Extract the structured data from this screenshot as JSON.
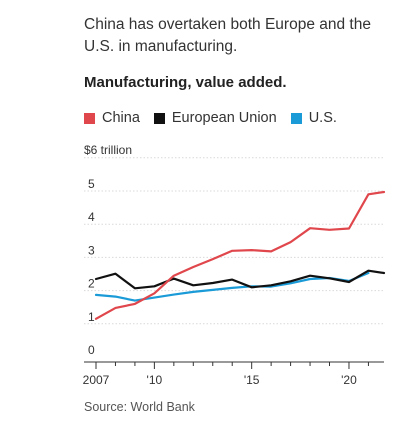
{
  "headline": "China has overtaken both Europe and the U.S. in manufacturing.",
  "source": "Source: World Bank",
  "colors": {
    "china": "#e0474c",
    "eu": "#111111",
    "us": "#1a9bd7",
    "grid": "#d9d9d9",
    "axis": "#333333"
  },
  "chart_data": {
    "type": "line",
    "title": "Manufacturing, value added.",
    "xlabel": "",
    "ylabel": "",
    "y_unit_label": "$6 trillion",
    "y_tick_labels": [
      "0",
      "1",
      "2",
      "3",
      "4",
      "5"
    ],
    "x_tick_labels": [
      "2007",
      "'10",
      "'15",
      "'20"
    ],
    "x_ticks": [
      2007,
      2010,
      2015,
      2020
    ],
    "xlim": [
      2007,
      2021.8
    ],
    "ylim": [
      0,
      6
    ],
    "grid": true,
    "legend_position": "top",
    "x": [
      2007,
      2008,
      2009,
      2010,
      2011,
      2012,
      2013,
      2014,
      2015,
      2016,
      2017,
      2018,
      2019,
      2020,
      2021,
      2021.8
    ],
    "series": [
      {
        "name": "China",
        "color": "#e0474c",
        "values": [
          1.15,
          1.48,
          1.6,
          1.92,
          2.45,
          2.71,
          2.95,
          3.2,
          3.22,
          3.18,
          3.46,
          3.88,
          3.83,
          3.87,
          4.9,
          4.97
        ]
      },
      {
        "name": "European Union",
        "color": "#111111",
        "values": [
          2.35,
          2.51,
          2.07,
          2.13,
          2.36,
          2.16,
          2.23,
          2.33,
          2.1,
          2.16,
          2.28,
          2.45,
          2.37,
          2.26,
          2.6,
          2.53
        ]
      },
      {
        "name": "U.S.",
        "color": "#1a9bd7",
        "values": [
          1.87,
          1.82,
          1.7,
          1.79,
          1.88,
          1.96,
          2.02,
          2.08,
          2.13,
          2.12,
          2.22,
          2.35,
          2.38,
          2.29,
          2.53,
          null
        ]
      }
    ]
  }
}
